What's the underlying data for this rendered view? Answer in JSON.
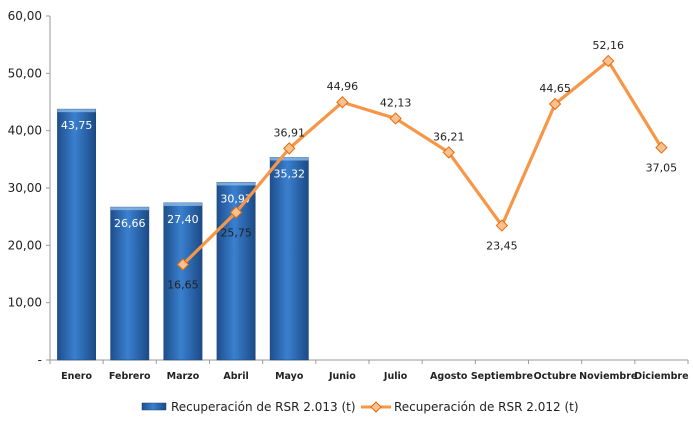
{
  "chart_data": {
    "type": "bar",
    "categories": [
      "Enero",
      "Febrero",
      "Marzo",
      "Abril",
      "Mayo",
      "Junio",
      "Julio",
      "Agosto",
      "Septiembre",
      "Octubre",
      "Noviembre",
      "Diciembre"
    ],
    "series": [
      {
        "name": "Recuperación de RSR 2.013 (t)",
        "type": "bar",
        "color": "#2E6DB4",
        "values": [
          43.75,
          26.66,
          27.4,
          30.97,
          35.32,
          null,
          null,
          null,
          null,
          null,
          null,
          null
        ],
        "labels": [
          "43,75",
          "26,66",
          "27,40",
          "30,97",
          "35,32",
          null,
          null,
          null,
          null,
          null,
          null,
          null
        ]
      },
      {
        "name": "Recuperación de RSR 2.012 (t)",
        "type": "line",
        "color": "#F79646",
        "values": [
          null,
          null,
          16.65,
          25.75,
          36.91,
          44.96,
          42.13,
          36.21,
          23.45,
          44.65,
          52.16,
          37.05
        ],
        "labels": [
          null,
          null,
          "16,65",
          "25,75",
          "36,91",
          "44,96",
          "42,13",
          "36,21",
          "23,45",
          "44,65",
          "52,16",
          "37,05"
        ]
      }
    ],
    "y_ticks": [
      "-",
      "10,00",
      "20,00",
      "30,00",
      "40,00",
      "50,00",
      "60,00"
    ],
    "ylim": [
      0,
      60
    ],
    "grid": false,
    "legend_position": "bottom"
  }
}
